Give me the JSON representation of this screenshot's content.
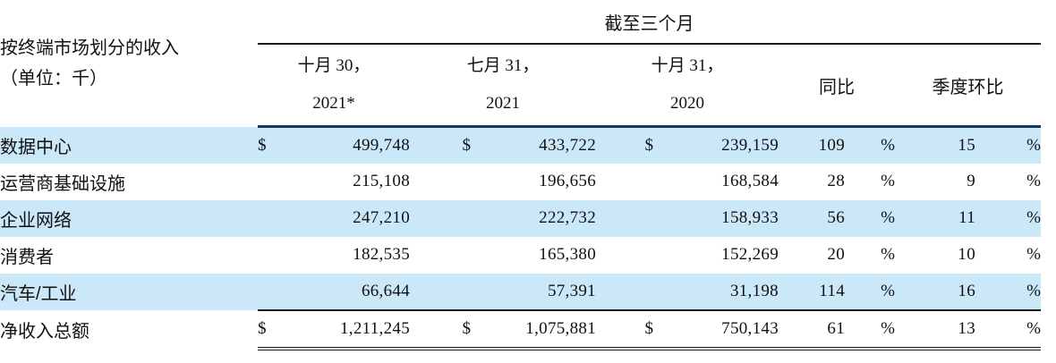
{
  "colors": {
    "highlight_row": "#cbe8f9",
    "header_rule_navy": "#17365d",
    "rule_black": "#1a1a1a",
    "text": "#111111"
  },
  "header": {
    "title": "截至三个月",
    "row_header_line1": "按终端市场划分的收入",
    "row_header_line2": "（单位：千）",
    "date_columns": [
      {
        "line1": "十月 30，",
        "line2": "2021*"
      },
      {
        "line1": "七月 31，",
        "line2": "2021"
      },
      {
        "line1": "十月 31，",
        "line2": "2020"
      }
    ],
    "yoy_label": "同比",
    "qoq_label": "季度环比"
  },
  "table": {
    "rows": [
      {
        "label": "数据中心",
        "d1": "$",
        "v1": "499,748",
        "d2": "$",
        "v2": "433,722",
        "d3": "$",
        "v3": "239,159",
        "yoy": "109",
        "yoy_pct": "%",
        "qoq": "15",
        "qoq_pct": "%",
        "highlight": true
      },
      {
        "label": "运营商基础设施",
        "d1": "",
        "v1": "215,108",
        "d2": "",
        "v2": "196,656",
        "d3": "",
        "v3": "168,584",
        "yoy": "28",
        "yoy_pct": "%",
        "qoq": "9",
        "qoq_pct": "%",
        "highlight": false
      },
      {
        "label": "企业网络",
        "d1": "",
        "v1": "247,210",
        "d2": "",
        "v2": "222,732",
        "d3": "",
        "v3": "158,933",
        "yoy": "56",
        "yoy_pct": "%",
        "qoq": "11",
        "qoq_pct": "%",
        "highlight": true
      },
      {
        "label": "消费者",
        "d1": "",
        "v1": "182,535",
        "d2": "",
        "v2": "165,380",
        "d3": "",
        "v3": "152,269",
        "yoy": "20",
        "yoy_pct": "%",
        "qoq": "10",
        "qoq_pct": "%",
        "highlight": false
      },
      {
        "label": "汽车/工业",
        "d1": "",
        "v1": "66,644",
        "d2": "",
        "v2": "57,391",
        "d3": "",
        "v3": "31,198",
        "yoy": "114",
        "yoy_pct": "%",
        "qoq": "16",
        "qoq_pct": "%",
        "highlight": true
      }
    ],
    "total_row": {
      "label": "净收入总额",
      "d1": "$",
      "v1": "1,211,245",
      "d2": "$",
      "v2": "1,075,881",
      "d3": "$",
      "v3": "750,143",
      "yoy": "61",
      "yoy_pct": "%",
      "qoq": "13",
      "qoq_pct": "%",
      "highlight": false
    }
  }
}
